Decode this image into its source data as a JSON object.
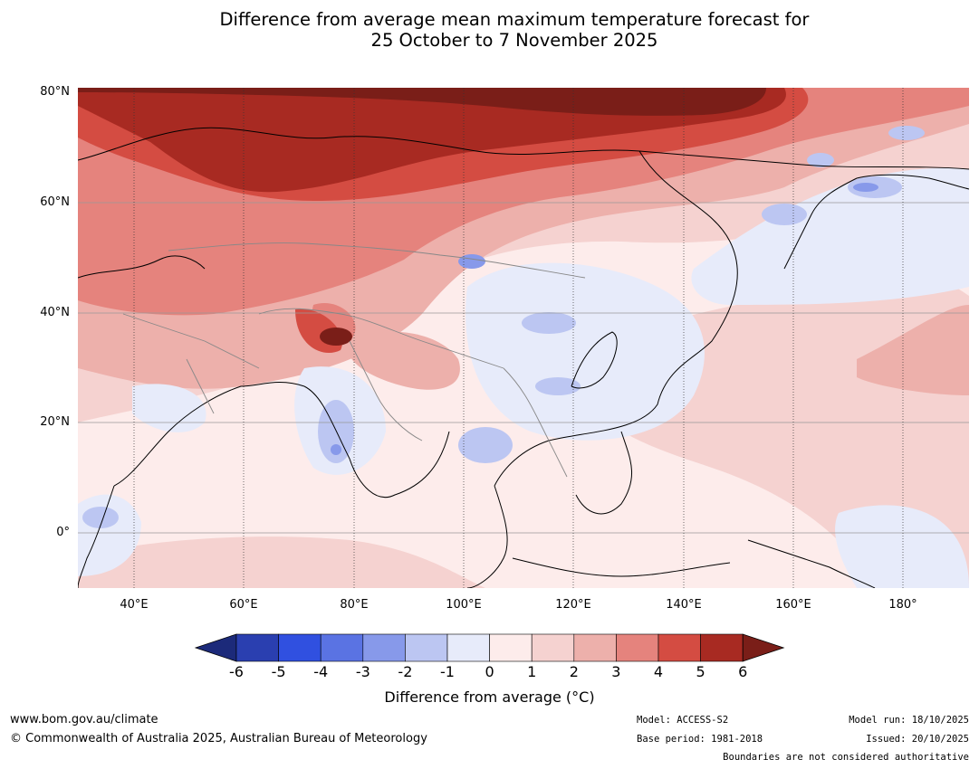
{
  "title": {
    "line1": "Difference from average mean maximum temperature forecast for",
    "line2": "25 October to 7 November 2025"
  },
  "axes": {
    "lat_labels": [
      "80°N",
      "60°N",
      "40°N",
      "20°N",
      "0°"
    ],
    "lon_labels": [
      "40°E",
      "60°E",
      "80°E",
      "100°E",
      "120°E",
      "140°E",
      "160°E",
      "180°"
    ]
  },
  "colorbar": {
    "ticks": [
      "-6",
      "-5",
      "-4",
      "-3",
      "-2",
      "-1",
      "0",
      "1",
      "2",
      "3",
      "4",
      "5",
      "6"
    ],
    "colors": [
      "#1c2a7a",
      "#2a3fb0",
      "#3050e0",
      "#5a73e3",
      "#8799ea",
      "#bcc6f2",
      "#e7ebfa",
      "#fdeceb",
      "#f5d2d0",
      "#edb0ab",
      "#e5837d",
      "#d44c42",
      "#a82a22",
      "#7a1e18"
    ],
    "label": "Difference from average (°C)"
  },
  "footer": {
    "website": "www.bom.gov.au/climate",
    "copyright": "© Commonwealth of Australia 2025, Australian Bureau of Meteorology",
    "model": "Model: ACCESS-S2",
    "base_period": "Base period: 1981-2018",
    "model_run": "Model run: 18/10/2025",
    "issued": "Issued: 20/10/2025",
    "disclaimer": "Boundaries are not considered authoritative"
  }
}
